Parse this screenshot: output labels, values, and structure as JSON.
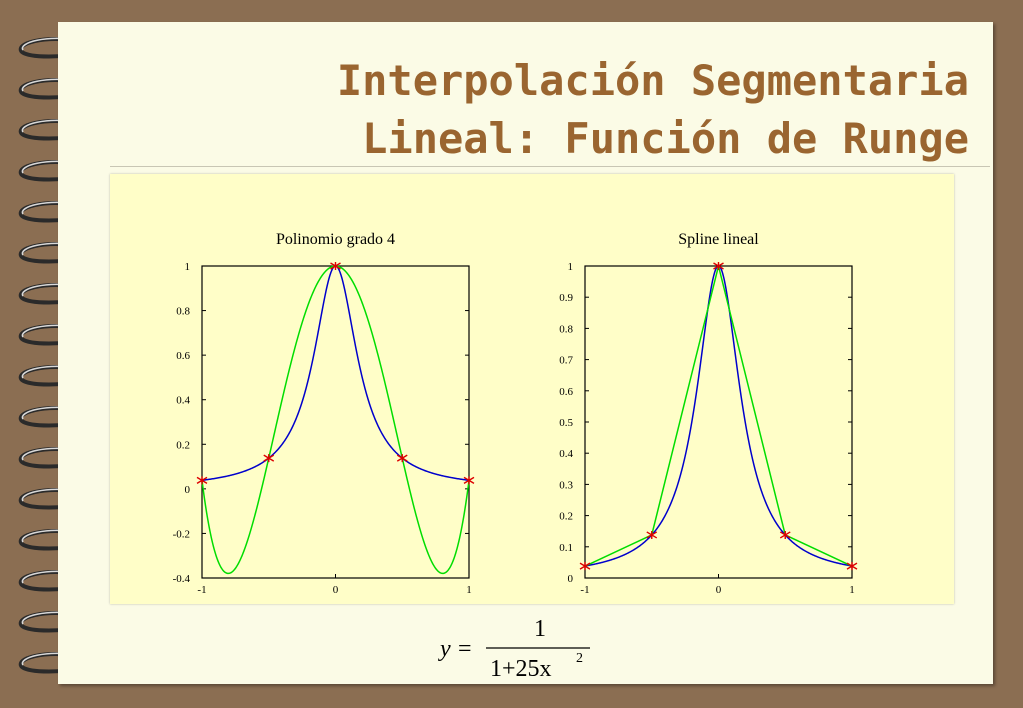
{
  "title": {
    "line1": "Interpolación Segmentaria",
    "line2": "Lineal: Función de Runge"
  },
  "formula": {
    "lhs": "y",
    "eq": "=",
    "numerator": "1",
    "denominator": "1+25x",
    "exponent": "2"
  },
  "colors": {
    "runge_curve": "#0000cc",
    "interpolant": "#00dd00",
    "nodes": "#dd0000",
    "title": "#9a6530"
  },
  "chart_data": [
    {
      "type": "line",
      "title": "Polinomio grado 4",
      "xlim": [
        -1,
        1
      ],
      "ylim": [
        -0.4,
        1
      ],
      "xticks": [
        -1,
        0,
        1
      ],
      "xtick_labels": [
        "-1",
        "0",
        "1"
      ],
      "yticks": [
        -0.4,
        -0.2,
        0,
        0.2,
        0.4,
        0.6,
        0.8,
        1
      ],
      "ytick_labels": [
        "-0.4",
        "-0.2",
        "0",
        "0.2",
        "0.4",
        "0.6",
        "0.8",
        "1"
      ],
      "series": [
        {
          "color": "#0000cc",
          "function": "1/(1+25x^2)",
          "x": [
            -1,
            -0.9,
            -0.8,
            -0.7,
            -0.6,
            -0.5,
            -0.4,
            -0.3,
            -0.2,
            -0.1,
            0,
            0.1,
            0.2,
            0.3,
            0.4,
            0.5,
            0.6,
            0.7,
            0.8,
            0.9,
            1
          ],
          "y": [
            0.038,
            0.047,
            0.059,
            0.075,
            0.1,
            0.138,
            0.2,
            0.308,
            0.5,
            0.8,
            1,
            0.8,
            0.5,
            0.308,
            0.2,
            0.138,
            0.1,
            0.075,
            0.059,
            0.047,
            0.038
          ]
        },
        {
          "color": "#00dd00",
          "function": "degree-4 interpolating polynomial",
          "x": [
            -1,
            -0.9,
            -0.8,
            -0.7,
            -0.6,
            -0.5,
            -0.4,
            -0.3,
            -0.2,
            -0.1,
            0,
            0.1,
            0.2,
            0.3,
            0.4,
            0.5,
            0.6,
            0.7,
            0.8,
            0.9,
            1
          ],
          "y": [
            0.038,
            -0.319,
            -0.379,
            -0.302,
            -0.102,
            0.138,
            0.403,
            0.643,
            0.838,
            0.959,
            1,
            0.959,
            0.838,
            0.643,
            0.403,
            0.138,
            -0.102,
            -0.302,
            -0.379,
            -0.319,
            0.038
          ]
        }
      ],
      "nodes": {
        "x": [
          -1,
          -0.5,
          0,
          0.5,
          1
        ],
        "y": [
          0.038,
          0.138,
          1,
          0.138,
          0.038
        ]
      }
    },
    {
      "type": "line",
      "title": "Spline lineal",
      "xlim": [
        -1,
        1
      ],
      "ylim": [
        0,
        1
      ],
      "xticks": [
        -1,
        0,
        1
      ],
      "xtick_labels": [
        "-1",
        "0",
        "1"
      ],
      "yticks": [
        0,
        0.1,
        0.2,
        0.3,
        0.4,
        0.5,
        0.6,
        0.7,
        0.8,
        0.9,
        1
      ],
      "ytick_labels": [
        "0",
        "0.1",
        "0.2",
        "0.3",
        "0.4",
        "0.5",
        "0.6",
        "0.7",
        "0.8",
        "0.9",
        "1"
      ],
      "series": [
        {
          "color": "#0000cc",
          "function": "1/(1+25x^2)",
          "x": [
            -1,
            -0.9,
            -0.8,
            -0.7,
            -0.6,
            -0.5,
            -0.4,
            -0.3,
            -0.2,
            -0.1,
            0,
            0.1,
            0.2,
            0.3,
            0.4,
            0.5,
            0.6,
            0.7,
            0.8,
            0.9,
            1
          ],
          "y": [
            0.038,
            0.047,
            0.059,
            0.075,
            0.1,
            0.138,
            0.2,
            0.308,
            0.5,
            0.8,
            1,
            0.8,
            0.5,
            0.308,
            0.2,
            0.138,
            0.1,
            0.075,
            0.059,
            0.047,
            0.038
          ]
        },
        {
          "color": "#00dd00",
          "function": "piecewise linear spline",
          "x": [
            -1,
            -0.5,
            0,
            0.5,
            1
          ],
          "y": [
            0.038,
            0.138,
            1,
            0.138,
            0.038
          ]
        }
      ],
      "nodes": {
        "x": [
          -1,
          -0.5,
          0,
          0.5,
          1
        ],
        "y": [
          0.038,
          0.138,
          1,
          0.138,
          0.038
        ]
      }
    }
  ]
}
